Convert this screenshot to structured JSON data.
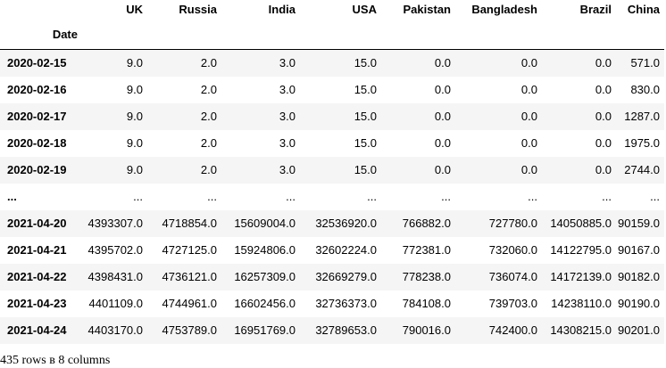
{
  "table": {
    "index_name": "Date",
    "columns": [
      "UK",
      "Russia",
      "India",
      "USA",
      "Pakistan",
      "Bangladesh",
      "Brazil",
      "China"
    ],
    "rows": [
      {
        "index": "2020-02-15",
        "values": [
          "9.0",
          "2.0",
          "3.0",
          "15.0",
          "0.0",
          "0.0",
          "0.0",
          "571.0"
        ]
      },
      {
        "index": "2020-02-16",
        "values": [
          "9.0",
          "2.0",
          "3.0",
          "15.0",
          "0.0",
          "0.0",
          "0.0",
          "830.0"
        ]
      },
      {
        "index": "2020-02-17",
        "values": [
          "9.0",
          "2.0",
          "3.0",
          "15.0",
          "0.0",
          "0.0",
          "0.0",
          "1287.0"
        ]
      },
      {
        "index": "2020-02-18",
        "values": [
          "9.0",
          "2.0",
          "3.0",
          "15.0",
          "0.0",
          "0.0",
          "0.0",
          "1975.0"
        ]
      },
      {
        "index": "2020-02-19",
        "values": [
          "9.0",
          "2.0",
          "3.0",
          "15.0",
          "0.0",
          "0.0",
          "0.0",
          "2744.0"
        ]
      },
      {
        "index": "...",
        "values": [
          "...",
          "...",
          "...",
          "...",
          "...",
          "...",
          "...",
          "..."
        ]
      },
      {
        "index": "2021-04-20",
        "values": [
          "4393307.0",
          "4718854.0",
          "15609004.0",
          "32536920.0",
          "766882.0",
          "727780.0",
          "14050885.0",
          "90159.0"
        ]
      },
      {
        "index": "2021-04-21",
        "values": [
          "4395702.0",
          "4727125.0",
          "15924806.0",
          "32602224.0",
          "772381.0",
          "732060.0",
          "14122795.0",
          "90167.0"
        ]
      },
      {
        "index": "2021-04-22",
        "values": [
          "4398431.0",
          "4736121.0",
          "16257309.0",
          "32669279.0",
          "778238.0",
          "736074.0",
          "14172139.0",
          "90182.0"
        ]
      },
      {
        "index": "2021-04-23",
        "values": [
          "4401109.0",
          "4744961.0",
          "16602456.0",
          "32736373.0",
          "784108.0",
          "739703.0",
          "14238110.0",
          "90190.0"
        ]
      },
      {
        "index": "2021-04-24",
        "values": [
          "4403170.0",
          "4753789.0",
          "16951769.0",
          "32789653.0",
          "790016.0",
          "742400.0",
          "14308215.0",
          "90201.0"
        ]
      }
    ]
  },
  "summary": "435 rows в 8 columns"
}
